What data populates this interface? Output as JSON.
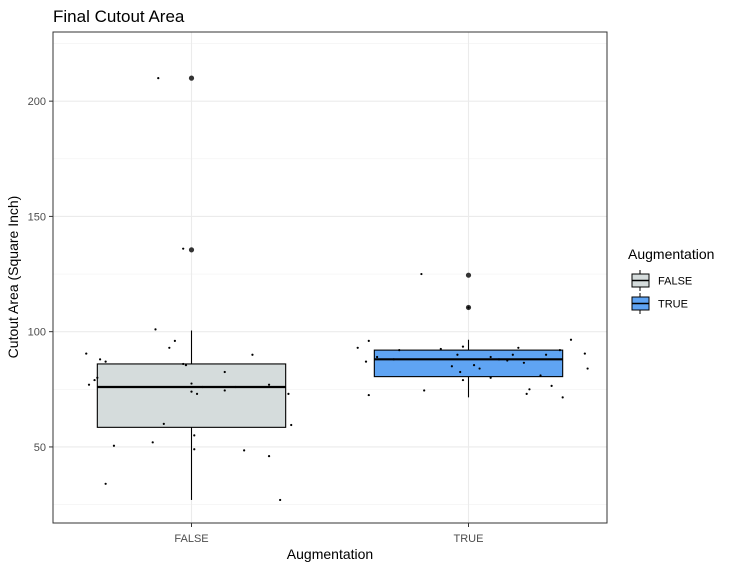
{
  "chart_data": {
    "type": "boxplot",
    "title": "Final Cutout Area",
    "xlabel": "Augmentation",
    "ylabel": "Cutout Area (Square Inch)",
    "categories": [
      "FALSE",
      "TRUE"
    ],
    "yticks": [
      50,
      100,
      150,
      200
    ],
    "ylim": [
      17,
      230
    ],
    "grid": true,
    "legend": {
      "title": "Augmentation",
      "placement": "right",
      "entries": [
        "FALSE",
        "TRUE"
      ]
    },
    "colors": {
      "FALSE": "#d5dcdc",
      "TRUE": "#5fa4f3"
    },
    "boxes": [
      {
        "category": "FALSE",
        "min": 27,
        "q1": 58.5,
        "median": 76,
        "q3": 86,
        "max": 100.5,
        "outliers": [
          210,
          135.5
        ],
        "points": [
          [
            -0.38,
            90.5
          ],
          [
            -0.37,
            77
          ],
          [
            -0.35,
            79
          ],
          [
            -0.34,
            80
          ],
          [
            -0.33,
            88
          ],
          [
            -0.31,
            87
          ],
          [
            -0.28,
            50.5
          ],
          [
            -0.31,
            34
          ],
          [
            -0.13,
            101
          ],
          [
            -0.14,
            52
          ],
          [
            -0.08,
            93
          ],
          [
            -0.06,
            96
          ],
          [
            -0.1,
            60
          ],
          [
            -0.03,
            86
          ],
          [
            -0.03,
            136
          ],
          [
            -0.12,
            210
          ],
          [
            -0.02,
            85.5
          ],
          [
            0.0,
            77.5
          ],
          [
            0.02,
            73
          ],
          [
            0.04,
            76
          ],
          [
            0.0,
            74
          ],
          [
            0.01,
            55
          ],
          [
            0.01,
            49
          ],
          [
            0.12,
            82.5
          ],
          [
            0.12,
            74.5
          ],
          [
            0.16,
            76
          ],
          [
            0.22,
            90
          ],
          [
            0.19,
            48.5
          ],
          [
            0.28,
            77
          ],
          [
            0.28,
            46
          ],
          [
            0.32,
            27
          ],
          [
            0.35,
            73
          ],
          [
            0.36,
            59.5
          ]
        ]
      },
      {
        "category": "TRUE",
        "min": 71.5,
        "q1": 80.5,
        "median": 88,
        "q3": 92,
        "max": 96.5,
        "outliers": [
          124.5,
          110.5
        ],
        "points": [
          [
            -0.4,
            93
          ],
          [
            -0.37,
            87
          ],
          [
            -0.36,
            96
          ],
          [
            -0.36,
            72.5
          ],
          [
            -0.33,
            89
          ],
          [
            -0.27,
            88
          ],
          [
            -0.25,
            92
          ],
          [
            -0.16,
            74.5
          ],
          [
            -0.17,
            125
          ],
          [
            -0.1,
            92.5
          ],
          [
            -0.04,
            90
          ],
          [
            -0.02,
            93.5
          ],
          [
            -0.06,
            85
          ],
          [
            -0.03,
            82.5
          ],
          [
            -0.02,
            79
          ],
          [
            0.0,
            110.5
          ],
          [
            0.02,
            85.5
          ],
          [
            0.04,
            84
          ],
          [
            0.08,
            89
          ],
          [
            0.08,
            80
          ],
          [
            0.11,
            88
          ],
          [
            0.14,
            87.5
          ],
          [
            0.16,
            90
          ],
          [
            0.18,
            93
          ],
          [
            0.2,
            86.5
          ],
          [
            0.21,
            73
          ],
          [
            0.22,
            75
          ],
          [
            0.26,
            81
          ],
          [
            0.28,
            90
          ],
          [
            0.3,
            76.5
          ],
          [
            0.33,
            92
          ],
          [
            0.34,
            71.5
          ],
          [
            0.37,
            96.5
          ],
          [
            0.42,
            90.5
          ],
          [
            0.43,
            84
          ]
        ]
      }
    ]
  }
}
